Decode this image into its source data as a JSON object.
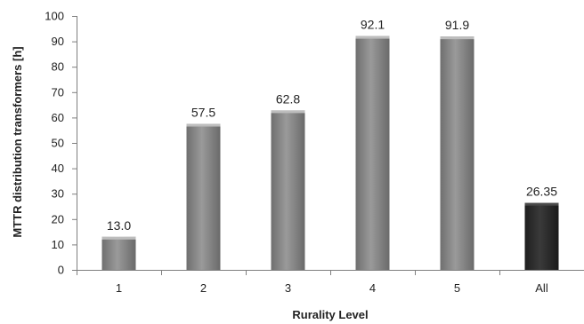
{
  "chart_data": {
    "type": "bar",
    "title": "",
    "xlabel": "Rurality Level",
    "ylabel": "MTTR distribution transformers [h]",
    "categories": [
      "1",
      "2",
      "3",
      "4",
      "5",
      "All"
    ],
    "values": [
      13.0,
      57.5,
      62.8,
      92.1,
      91.9,
      26.35
    ],
    "data_labels": [
      "13.0",
      "57.5",
      "62.8",
      "92.1",
      "91.9",
      "26.35"
    ],
    "ylim": [
      0,
      100
    ],
    "yticks": [
      "0",
      "10",
      "20",
      "30",
      "40",
      "50",
      "60",
      "70",
      "80",
      "90",
      "100"
    ],
    "grid": false,
    "legend": "none",
    "colors": {
      "bar": "#8c8c8c",
      "bar_highlight": "#2b2b2b",
      "axis": "#7f7f7f",
      "text": "#222222"
    }
  }
}
